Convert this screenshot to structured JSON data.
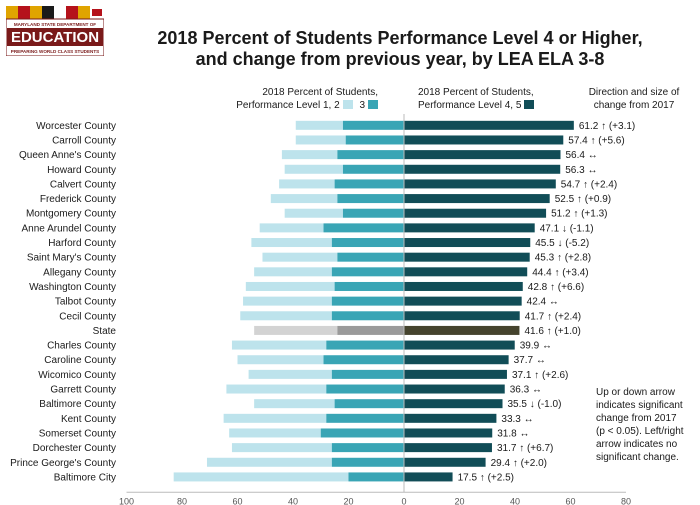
{
  "logo": {
    "agency": "MARYLAND STATE DEPARTMENT OF",
    "word": "EDUCATION",
    "tagline": "PREPARING WORLD CLASS STUDENTS"
  },
  "legend": {
    "left_line1": "2018 Percent of Students,",
    "left_line2": "Performance Level 1, 2",
    "left_mid": "3",
    "right_line1": "2018 Percent of Students,",
    "right_line2": "Performance Level 4, 5",
    "dir_line1": "Direction and size of",
    "dir_line2": "change from 2017"
  },
  "note": [
    "Up or down arrow",
    "indicates significant",
    "change from 2017",
    "(p < 0.05). Left/right",
    "arrow indicates no",
    "significant change."
  ],
  "colors": {
    "level12": "#bde3ec",
    "level3": "#39a5b5",
    "level45": "#114d57",
    "state12": "#d3d3d3",
    "state3": "#9a9a9a",
    "state45": "#45432d"
  },
  "chart_data": {
    "type": "bar",
    "orientation": "horizontal-diverging",
    "title": "2018 Percent of Students Performance Level 4 or Higher, and change from previous year, by LEA ELA 3-8",
    "title_lines": [
      "2018 Percent of Students Performance Level 4 or Higher,",
      "and change from previous year, by LEA ELA 3-8"
    ],
    "xlim": [
      -100,
      80
    ],
    "xticks": [
      -100,
      -80,
      -60,
      -40,
      -20,
      0,
      20,
      40,
      60,
      80
    ],
    "xtick_labels": [
      "100",
      "80",
      "60",
      "40",
      "20",
      "0",
      "20",
      "40",
      "60",
      "80"
    ],
    "grid": false,
    "categories": [
      "Worcester County",
      "Carroll County",
      "Queen Anne's County",
      "Howard County",
      "Calvert County",
      "Frederick County",
      "Montgomery County",
      "Anne Arundel County",
      "Harford County",
      "Saint Mary's County",
      "Allegany County",
      "Washington County",
      "Talbot County",
      "Cecil County",
      "State",
      "Charles County",
      "Caroline County",
      "Wicomico County",
      "Garrett County",
      "Baltimore County",
      "Kent County",
      "Somerset County",
      "Dorchester County",
      "Prince George's County",
      "Baltimore City"
    ],
    "series": [
      {
        "name": "2018 Percent of Students, Performance Level 1, 2",
        "values": [
          17,
          18,
          20,
          21,
          20,
          24,
          21,
          23,
          29,
          27,
          28,
          32,
          32,
          33,
          30,
          34,
          31,
          30,
          36,
          29,
          37,
          33,
          36,
          45,
          63
        ]
      },
      {
        "name": "3",
        "values": [
          22,
          21,
          24,
          22,
          25,
          24,
          22,
          29,
          26,
          24,
          26,
          25,
          26,
          26,
          24,
          28,
          29,
          26,
          28,
          25,
          28,
          30,
          26,
          26,
          20
        ]
      },
      {
        "name": "2018 Percent of Students, Performance Level 4, 5",
        "values": [
          61.2,
          57.4,
          56.4,
          56.3,
          54.7,
          52.5,
          51.2,
          47.1,
          45.5,
          45.3,
          44.4,
          42.8,
          42.4,
          41.7,
          41.6,
          39.9,
          37.7,
          37.1,
          36.3,
          35.5,
          33.3,
          31.8,
          31.7,
          29.4,
          17.5
        ]
      }
    ],
    "data_labels": [
      "61.2 ↑ (+3.1)",
      "57.4 ↑ (+5.6)",
      "56.4 ↔",
      "56.3 ↔",
      "54.7 ↑ (+2.4)",
      "52.5 ↑ (+0.9)",
      "51.2 ↑ (+1.3)",
      "47.1 ↓ (-1.1)",
      "45.5 ↓ (-5.2)",
      "45.3 ↑ (+2.8)",
      "44.4 ↑ (+3.4)",
      "42.8 ↑ (+6.6)",
      "42.4 ↔",
      "41.7 ↑ (+2.4)",
      "41.6 ↑ (+1.0)",
      "39.9 ↔",
      "37.7 ↔",
      "37.1 ↑ (+2.6)",
      "36.3 ↔",
      "35.5 ↓ (-1.0)",
      "33.3 ↔",
      "31.8 ↔",
      "31.7 ↑ (+6.7)",
      "29.4 ↑ (+2.0)",
      "17.5 ↑ (+2.5)"
    ],
    "highlight_category": "State"
  }
}
